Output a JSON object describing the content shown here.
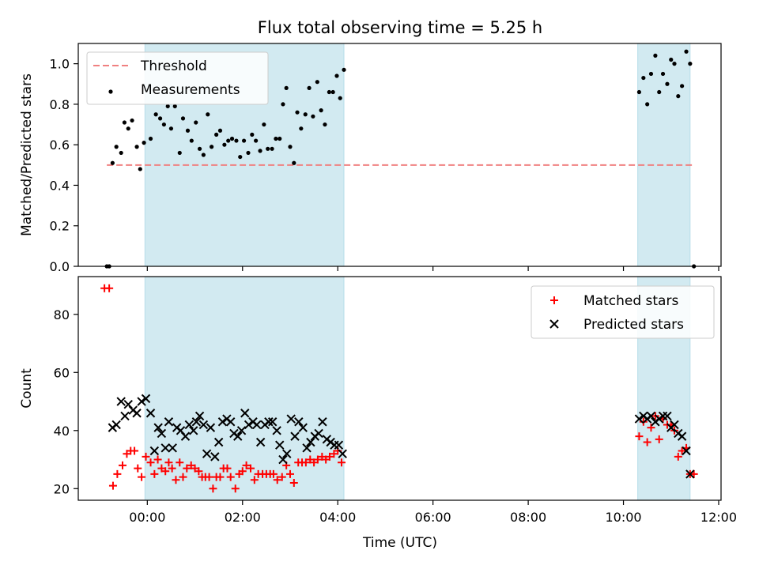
{
  "chart_data": {
    "title": "Flux total observing time = 5.25 h",
    "xlabel": "Time (UTC)",
    "x_ticks": [
      "00:00",
      "02:00",
      "04:00",
      "06:00",
      "08:00",
      "10:00",
      "12:00"
    ],
    "x_tick_hours": [
      0,
      2,
      4,
      6,
      8,
      10,
      12
    ],
    "xlim_hours": [
      -1.45,
      12.05
    ],
    "shaded_intervals_hours": [
      [
        -0.05,
        4.13
      ],
      [
        10.3,
        11.4
      ]
    ],
    "shade_color": "#add8e6",
    "panels": [
      {
        "type": "scatter",
        "ylabel": "Matched/Predicted stars",
        "ylim": [
          0,
          1.1
        ],
        "y_ticks": [
          "0.0",
          "0.2",
          "0.4",
          "0.6",
          "0.8",
          "1.0"
        ],
        "y_tick_values": [
          0,
          0.2,
          0.4,
          0.6,
          0.8,
          1.0
        ],
        "legend_position": "upper left",
        "threshold": {
          "name": "Threshold",
          "value": 0.5,
          "x_range_hours": [
            -0.85,
            11.45
          ],
          "color": "#f08080",
          "style": "dashed"
        },
        "series": [
          {
            "name": "Measurements",
            "color": "#000000",
            "marker": "dot",
            "points": [
              [
                -0.85,
                0.0
              ],
              [
                -0.8,
                0.0
              ],
              [
                -0.73,
                0.51
              ],
              [
                -0.65,
                0.59
              ],
              [
                -0.55,
                0.56
              ],
              [
                -0.48,
                0.71
              ],
              [
                -0.4,
                0.68
              ],
              [
                -0.32,
                0.72
              ],
              [
                -0.22,
                0.59
              ],
              [
                -0.15,
                0.48
              ],
              [
                -0.07,
                0.61
              ],
              [
                0.07,
                0.63
              ],
              [
                0.18,
                0.75
              ],
              [
                0.27,
                0.73
              ],
              [
                0.35,
                0.7
              ],
              [
                0.43,
                0.79
              ],
              [
                0.5,
                0.68
              ],
              [
                0.58,
                0.79
              ],
              [
                0.68,
                0.56
              ],
              [
                0.75,
                0.73
              ],
              [
                0.85,
                0.67
              ],
              [
                0.93,
                0.62
              ],
              [
                1.02,
                0.71
              ],
              [
                1.1,
                0.58
              ],
              [
                1.18,
                0.55
              ],
              [
                1.27,
                0.75
              ],
              [
                1.35,
                0.59
              ],
              [
                1.45,
                0.65
              ],
              [
                1.53,
                0.67
              ],
              [
                1.62,
                0.6
              ],
              [
                1.7,
                0.62
              ],
              [
                1.78,
                0.63
              ],
              [
                1.87,
                0.62
              ],
              [
                1.95,
                0.54
              ],
              [
                2.03,
                0.62
              ],
              [
                2.12,
                0.56
              ],
              [
                2.2,
                0.65
              ],
              [
                2.28,
                0.62
              ],
              [
                2.37,
                0.57
              ],
              [
                2.45,
                0.7
              ],
              [
                2.53,
                0.58
              ],
              [
                2.62,
                0.58
              ],
              [
                2.7,
                0.63
              ],
              [
                2.78,
                0.63
              ],
              [
                2.85,
                0.8
              ],
              [
                2.92,
                0.88
              ],
              [
                3.0,
                0.59
              ],
              [
                3.08,
                0.51
              ],
              [
                3.15,
                0.76
              ],
              [
                3.23,
                0.68
              ],
              [
                3.32,
                0.75
              ],
              [
                3.4,
                0.88
              ],
              [
                3.48,
                0.74
              ],
              [
                3.57,
                0.91
              ],
              [
                3.65,
                0.77
              ],
              [
                3.73,
                0.7
              ],
              [
                3.82,
                0.86
              ],
              [
                3.9,
                0.86
              ],
              [
                3.98,
                0.94
              ],
              [
                4.05,
                0.83
              ],
              [
                4.13,
                0.97
              ],
              [
                10.33,
                0.86
              ],
              [
                10.42,
                0.93
              ],
              [
                10.5,
                0.8
              ],
              [
                10.58,
                0.95
              ],
              [
                10.67,
                1.04
              ],
              [
                10.75,
                0.86
              ],
              [
                10.83,
                0.95
              ],
              [
                10.92,
                0.9
              ],
              [
                11.0,
                1.02
              ],
              [
                11.07,
                1.0
              ],
              [
                11.15,
                0.84
              ],
              [
                11.23,
                0.89
              ],
              [
                11.32,
                1.06
              ],
              [
                11.4,
                1.0
              ],
              [
                11.48,
                0.0
              ]
            ]
          }
        ]
      },
      {
        "type": "scatter",
        "ylabel": "Count",
        "ylim": [
          16,
          93
        ],
        "y_ticks": [
          "20",
          "40",
          "60",
          "80"
        ],
        "y_tick_values": [
          20,
          40,
          60,
          80
        ],
        "legend_position": "upper right",
        "series": [
          {
            "name": "Matched stars",
            "color": "#ff0000",
            "marker": "plus",
            "points": [
              [
                -0.9,
                89
              ],
              [
                -0.8,
                89
              ],
              [
                -0.72,
                21
              ],
              [
                -0.63,
                25
              ],
              [
                -0.52,
                28
              ],
              [
                -0.43,
                32
              ],
              [
                -0.35,
                33
              ],
              [
                -0.27,
                33
              ],
              [
                -0.2,
                27
              ],
              [
                -0.12,
                24
              ],
              [
                -0.03,
                31
              ],
              [
                0.07,
                29
              ],
              [
                0.15,
                25
              ],
              [
                0.22,
                30
              ],
              [
                0.3,
                27
              ],
              [
                0.38,
                26
              ],
              [
                0.45,
                29
              ],
              [
                0.52,
                27
              ],
              [
                0.6,
                23
              ],
              [
                0.68,
                29
              ],
              [
                0.75,
                24
              ],
              [
                0.83,
                27
              ],
              [
                0.92,
                28
              ],
              [
                1.0,
                27
              ],
              [
                1.08,
                26
              ],
              [
                1.15,
                24
              ],
              [
                1.22,
                24
              ],
              [
                1.3,
                24
              ],
              [
                1.38,
                20
              ],
              [
                1.45,
                24
              ],
              [
                1.53,
                24
              ],
              [
                1.6,
                27
              ],
              [
                1.68,
                27
              ],
              [
                1.75,
                24
              ],
              [
                1.85,
                20
              ],
              [
                1.93,
                25
              ],
              [
                2.0,
                26
              ],
              [
                2.08,
                28
              ],
              [
                2.17,
                27
              ],
              [
                2.25,
                23
              ],
              [
                2.33,
                25
              ],
              [
                2.42,
                25
              ],
              [
                2.5,
                25
              ],
              [
                2.58,
                25
              ],
              [
                2.65,
                25
              ],
              [
                2.73,
                23
              ],
              [
                2.83,
                24
              ],
              [
                2.92,
                28
              ],
              [
                3.0,
                25
              ],
              [
                3.08,
                22
              ],
              [
                3.17,
                29
              ],
              [
                3.25,
                29
              ],
              [
                3.33,
                29
              ],
              [
                3.42,
                30
              ],
              [
                3.5,
                29
              ],
              [
                3.58,
                30
              ],
              [
                3.67,
                31
              ],
              [
                3.75,
                30
              ],
              [
                3.83,
                31
              ],
              [
                3.92,
                32
              ],
              [
                4.0,
                33
              ],
              [
                4.08,
                29
              ],
              [
                10.33,
                38
              ],
              [
                10.42,
                43
              ],
              [
                10.5,
                36
              ],
              [
                10.58,
                41
              ],
              [
                10.67,
                45
              ],
              [
                10.75,
                37
              ],
              [
                10.83,
                44
              ],
              [
                10.92,
                42
              ],
              [
                11.0,
                42
              ],
              [
                11.07,
                40
              ],
              [
                11.15,
                31
              ],
              [
                11.23,
                33
              ],
              [
                11.32,
                34
              ],
              [
                11.4,
                25
              ],
              [
                11.48,
                25
              ]
            ]
          },
          {
            "name": "Predicted stars",
            "color": "#000000",
            "marker": "x",
            "points": [
              [
                -0.73,
                41
              ],
              [
                -0.65,
                42
              ],
              [
                -0.55,
                50
              ],
              [
                -0.47,
                45
              ],
              [
                -0.4,
                49
              ],
              [
                -0.3,
                47
              ],
              [
                -0.22,
                46
              ],
              [
                -0.12,
                50
              ],
              [
                -0.03,
                51
              ],
              [
                0.07,
                46
              ],
              [
                0.15,
                33
              ],
              [
                0.23,
                41
              ],
              [
                0.3,
                39
              ],
              [
                0.38,
                34
              ],
              [
                0.45,
                43
              ],
              [
                0.53,
                34
              ],
              [
                0.62,
                41
              ],
              [
                0.7,
                40
              ],
              [
                0.8,
                38
              ],
              [
                0.88,
                42
              ],
              [
                0.97,
                40
              ],
              [
                1.03,
                43
              ],
              [
                1.1,
                45
              ],
              [
                1.18,
                42
              ],
              [
                1.25,
                32
              ],
              [
                1.33,
                41
              ],
              [
                1.42,
                31
              ],
              [
                1.5,
                36
              ],
              [
                1.58,
                43
              ],
              [
                1.67,
                44
              ],
              [
                1.75,
                43
              ],
              [
                1.82,
                39
              ],
              [
                1.9,
                38
              ],
              [
                1.98,
                40
              ],
              [
                2.05,
                46
              ],
              [
                2.13,
                42
              ],
              [
                2.22,
                43
              ],
              [
                2.3,
                42
              ],
              [
                2.38,
                36
              ],
              [
                2.47,
                42
              ],
              [
                2.55,
                43
              ],
              [
                2.63,
                43
              ],
              [
                2.72,
                40
              ],
              [
                2.78,
                35
              ],
              [
                2.85,
                30
              ],
              [
                2.93,
                32
              ],
              [
                3.02,
                44
              ],
              [
                3.1,
                38
              ],
              [
                3.18,
                43
              ],
              [
                3.27,
                41
              ],
              [
                3.35,
                34
              ],
              [
                3.43,
                36
              ],
              [
                3.52,
                38
              ],
              [
                3.6,
                39
              ],
              [
                3.68,
                43
              ],
              [
                3.77,
                37
              ],
              [
                3.85,
                36
              ],
              [
                3.93,
                35
              ],
              [
                4.02,
                35
              ],
              [
                4.1,
                32
              ],
              [
                10.33,
                44
              ],
              [
                10.42,
                45
              ],
              [
                10.5,
                44
              ],
              [
                10.58,
                45
              ],
              [
                10.67,
                43
              ],
              [
                10.75,
                44
              ],
              [
                10.83,
                45
              ],
              [
                10.92,
                45
              ],
              [
                11.0,
                41
              ],
              [
                11.07,
                42
              ],
              [
                11.15,
                39
              ],
              [
                11.23,
                38
              ],
              [
                11.32,
                33
              ],
              [
                11.4,
                25
              ]
            ]
          }
        ]
      }
    ]
  }
}
